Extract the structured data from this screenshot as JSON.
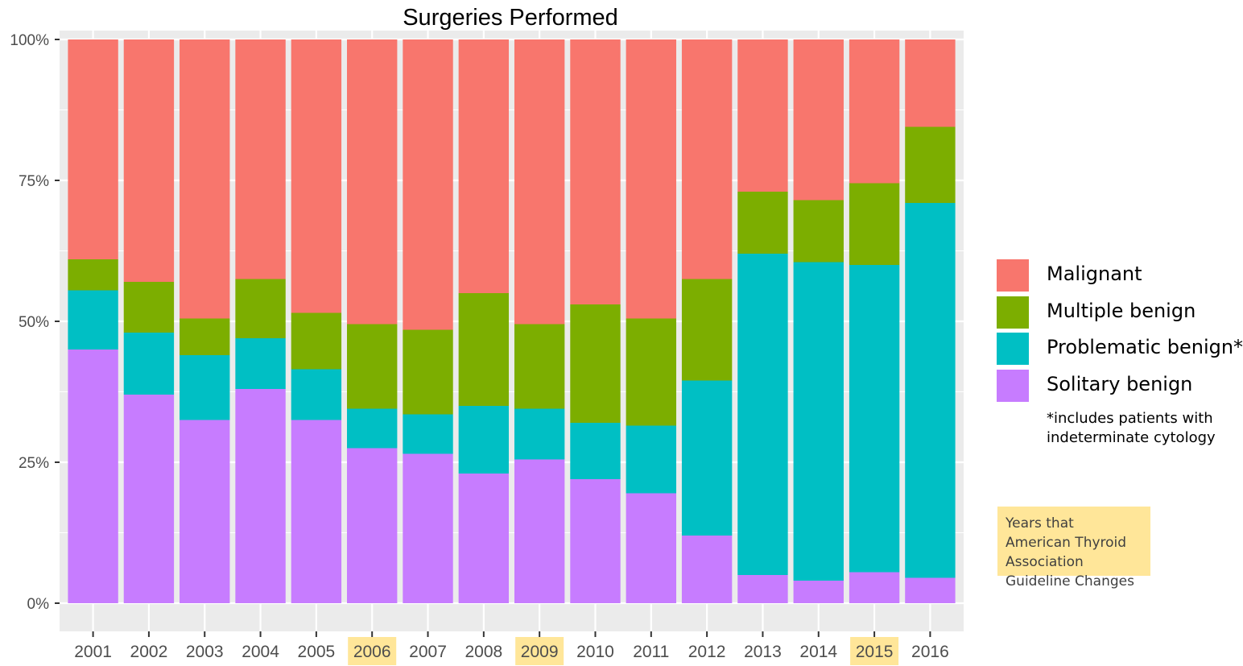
{
  "chart_data": {
    "type": "bar",
    "stacked": "percent",
    "title": "Surgeries Performed",
    "xlabel": "",
    "ylabel": "",
    "ylim": [
      0,
      1
    ],
    "y_ticks": [
      "0%",
      "25%",
      "50%",
      "75%",
      "100%"
    ],
    "y_tick_values": [
      0,
      0.25,
      0.5,
      0.75,
      1.0
    ],
    "grid": true,
    "categories": [
      "2001",
      "2002",
      "2003",
      "2004",
      "2005",
      "2006",
      "2007",
      "2008",
      "2009",
      "2010",
      "2011",
      "2012",
      "2013",
      "2014",
      "2015",
      "2016"
    ],
    "highlighted_categories": [
      "2006",
      "2009",
      "2015"
    ],
    "highlight_color": "#ffe699",
    "series": [
      {
        "name": "Solitary benign",
        "color": "#c77cff",
        "values": [
          0.45,
          0.37,
          0.325,
          0.38,
          0.325,
          0.275,
          0.265,
          0.23,
          0.255,
          0.22,
          0.195,
          0.12,
          0.05,
          0.04,
          0.055,
          0.045
        ]
      },
      {
        "name": "Problematic benign*",
        "color": "#00bfc4",
        "values": [
          0.105,
          0.11,
          0.115,
          0.09,
          0.09,
          0.07,
          0.07,
          0.12,
          0.09,
          0.1,
          0.12,
          0.275,
          0.57,
          0.565,
          0.545,
          0.665
        ]
      },
      {
        "name": "Multiple benign",
        "color": "#7cae00",
        "values": [
          0.055,
          0.09,
          0.065,
          0.105,
          0.1,
          0.15,
          0.15,
          0.2,
          0.15,
          0.21,
          0.19,
          0.18,
          0.11,
          0.11,
          0.145,
          0.135
        ]
      },
      {
        "name": "Malignant",
        "color": "#f8766d",
        "values": [
          0.39,
          0.43,
          0.495,
          0.425,
          0.485,
          0.505,
          0.515,
          0.45,
          0.505,
          0.47,
          0.495,
          0.425,
          0.27,
          0.285,
          0.255,
          0.155
        ]
      }
    ],
    "legend": {
      "placement": "right",
      "order": [
        "Malignant",
        "Multiple benign",
        "Problematic benign*",
        "Solitary benign"
      ]
    },
    "annotations": {
      "footnote": "*includes patients with indeterminate cytology",
      "note_box": "Years that American Thyroid Association Guideline Changes"
    },
    "panel_background": "#ebebeb",
    "grid_color": "#ffffff"
  }
}
